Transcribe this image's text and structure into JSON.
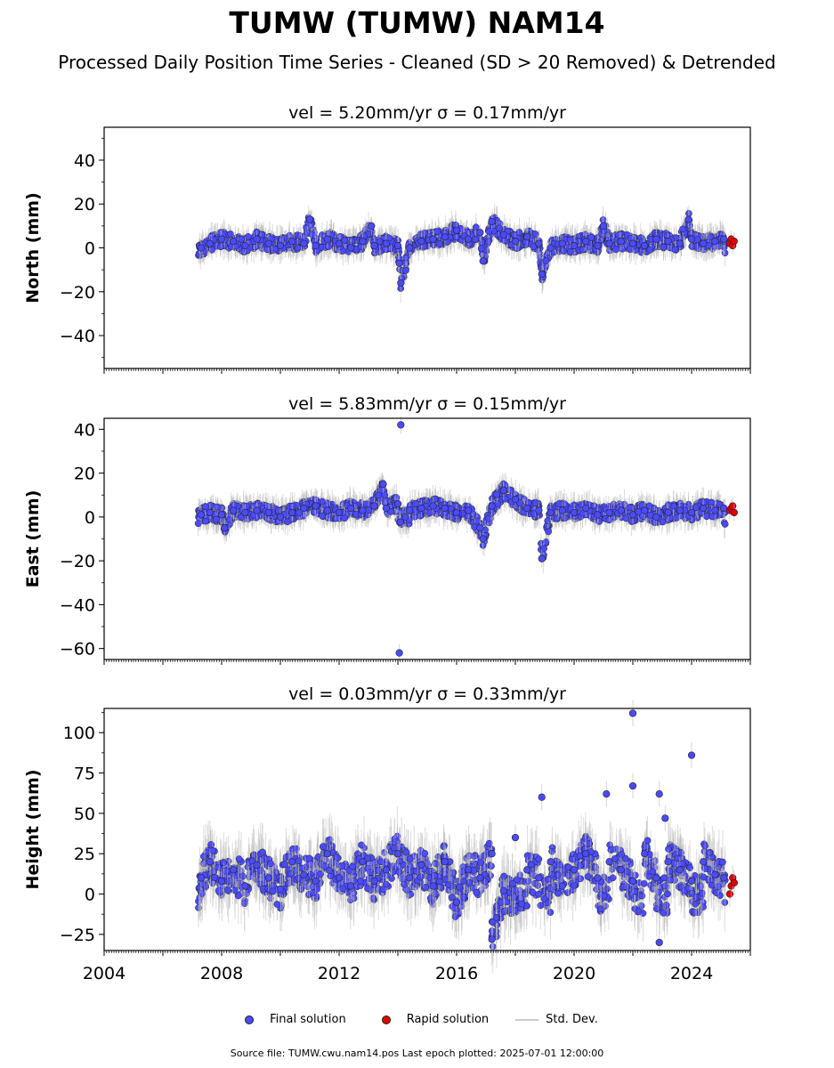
{
  "title": "TUMW (TUMW) NAM14",
  "subtitle": "Processed Daily Position Time Series - Cleaned (SD > 20 Removed) & Detrended",
  "source_note": "Source file: TUMW.cwu.nam14.pos  Last epoch plotted: 2025-07-01 12:00:00",
  "legend": {
    "final": "Final solution",
    "rapid": "Rapid solution",
    "std": "Std. Dev."
  },
  "colors": {
    "final": "#4a4aff",
    "rapid": "#e00000",
    "std": "#bbbbbb",
    "edge": "#222222"
  },
  "chart_data": [
    {
      "type": "scatter",
      "panel": "north",
      "title": "vel = 5.20mm/yr   σ = 0.17mm/yr",
      "ylabel": "North (mm)",
      "xlabel": "",
      "xlim": [
        2004,
        2026
      ],
      "ylim": [
        -55,
        55
      ],
      "yticks": [
        "40",
        "20",
        "0",
        "−20",
        "−40"
      ],
      "yticks_values": [
        40,
        20,
        0,
        -20,
        -40
      ],
      "show_xticklabels": false,
      "series": [
        {
          "name": "Final solution",
          "x": [
            2007.3,
            2007.6,
            2008.0,
            2008.4,
            2008.8,
            2009.2,
            2009.6,
            2010.0,
            2010.4,
            2010.8,
            2011.2,
            2011.6,
            2012.0,
            2012.4,
            2012.8,
            2013.2,
            2013.6,
            2014.0,
            2014.4,
            2014.8,
            2015.2,
            2015.6,
            2016.0,
            2016.4,
            2016.8,
            2017.2,
            2017.6,
            2018.0,
            2018.4,
            2018.8,
            2019.2,
            2019.6,
            2020.0,
            2020.4,
            2020.8,
            2021.2,
            2021.6,
            2022.0,
            2022.4,
            2022.8,
            2023.2,
            2023.6,
            2024.0,
            2024.4,
            2024.8,
            2025.1,
            2011.0,
            2014.1,
            2014.05,
            2018.9,
            2016.9,
            2021.0,
            2023.9,
            2013.1
          ],
          "y": [
            0,
            2,
            4,
            3,
            1,
            4,
            2,
            1,
            3,
            2,
            1,
            4,
            2,
            0,
            3,
            1,
            2,
            1,
            0,
            3,
            4,
            5,
            8,
            4,
            7,
            12,
            6,
            3,
            5,
            2,
            0,
            2,
            1,
            3,
            1,
            2,
            3,
            2,
            1,
            4,
            3,
            2,
            4,
            2,
            3,
            4,
            13,
            -16,
            -7,
            -12,
            -6,
            10,
            13,
            10
          ]
        },
        {
          "name": "Rapid solution",
          "x": [
            2025.3,
            2025.35,
            2025.4,
            2025.45
          ],
          "y": [
            2,
            4,
            1,
            3
          ]
        }
      ]
    },
    {
      "type": "scatter",
      "panel": "east",
      "title": "vel = 5.83mm/yr   σ = 0.15mm/yr",
      "ylabel": "East (mm)",
      "xlabel": "",
      "xlim": [
        2004,
        2026
      ],
      "ylim": [
        -65,
        45
      ],
      "yticks": [
        "40",
        "20",
        "0",
        "−20",
        "−40",
        "−60"
      ],
      "yticks_values": [
        40,
        20,
        0,
        -20,
        -40,
        -60
      ],
      "show_xticklabels": false,
      "series": [
        {
          "name": "Final solution",
          "x": [
            2007.3,
            2007.6,
            2008.0,
            2008.4,
            2008.8,
            2009.2,
            2009.6,
            2010.0,
            2010.4,
            2010.8,
            2011.2,
            2011.6,
            2012.0,
            2012.4,
            2012.8,
            2013.2,
            2013.6,
            2014.0,
            2014.4,
            2014.8,
            2015.2,
            2015.6,
            2016.0,
            2016.4,
            2016.8,
            2017.2,
            2017.6,
            2018.0,
            2018.4,
            2018.8,
            2019.2,
            2019.6,
            2020.0,
            2020.4,
            2020.8,
            2021.2,
            2021.6,
            2022.0,
            2022.4,
            2022.8,
            2023.2,
            2023.6,
            2024.0,
            2024.4,
            2024.8,
            2025.1,
            2014.1,
            2014.05,
            2018.9,
            2013.5,
            2008.1,
            2016.9
          ],
          "y": [
            1,
            2,
            1,
            3,
            2,
            3,
            2,
            0,
            2,
            4,
            5,
            3,
            2,
            4,
            3,
            5,
            4,
            6,
            3,
            4,
            5,
            4,
            2,
            3,
            -5,
            5,
            12,
            8,
            4,
            3,
            2,
            3,
            2,
            4,
            1,
            2,
            3,
            1,
            3,
            0,
            2,
            3,
            2,
            4,
            3,
            4,
            42,
            -62,
            -19,
            15,
            -5,
            -10
          ]
        },
        {
          "name": "Rapid solution",
          "x": [
            2025.3,
            2025.35,
            2025.4,
            2025.45
          ],
          "y": [
            3,
            4,
            5,
            2
          ]
        }
      ]
    },
    {
      "type": "scatter",
      "panel": "height",
      "title": "vel = 0.03mm/yr   σ = 0.33mm/yr",
      "ylabel": "Height (mm)",
      "xlabel": "",
      "xlim": [
        2004,
        2026
      ],
      "ylim": [
        -35,
        115
      ],
      "yticks": [
        "100",
        "75",
        "50",
        "25",
        "0",
        "−25"
      ],
      "yticks_values": [
        100,
        75,
        50,
        25,
        0,
        -25
      ],
      "xticks": [
        "2004",
        "2008",
        "2012",
        "2016",
        "2020",
        "2024"
      ],
      "xticks_values": [
        2004,
        2008,
        2012,
        2016,
        2020,
        2024
      ],
      "show_xticklabels": true,
      "series": [
        {
          "name": "Final solution",
          "x": [
            2007.3,
            2007.6,
            2008.0,
            2008.4,
            2008.8,
            2009.2,
            2009.6,
            2010.0,
            2010.4,
            2010.8,
            2011.2,
            2011.6,
            2012.0,
            2012.4,
            2012.8,
            2013.2,
            2013.6,
            2014.0,
            2014.4,
            2014.8,
            2015.2,
            2015.6,
            2016.0,
            2016.4,
            2016.8,
            2017.2,
            2017.6,
            2018.0,
            2018.4,
            2018.8,
            2019.2,
            2019.6,
            2020.0,
            2020.4,
            2020.8,
            2021.2,
            2021.6,
            2022.0,
            2022.4,
            2022.8,
            2023.2,
            2023.6,
            2024.0,
            2024.4,
            2024.8,
            2025.1,
            2022.0,
            2024.0,
            2021.1,
            2022.9,
            2018.9,
            2022.0,
            2023.1,
            2022.9,
            2017.2
          ],
          "y": [
            10,
            20,
            8,
            15,
            5,
            18,
            10,
            3,
            20,
            12,
            8,
            25,
            10,
            5,
            20,
            8,
            15,
            25,
            10,
            18,
            5,
            20,
            -5,
            15,
            10,
            25,
            2,
            35,
            15,
            10,
            20,
            5,
            15,
            25,
            10,
            20,
            15,
            8,
            25,
            10,
            20,
            15,
            8,
            20,
            12,
            10,
            112,
            86,
            62,
            62,
            60,
            67,
            47,
            -30,
            -28
          ]
        },
        {
          "name": "Rapid solution",
          "x": [
            2025.3,
            2025.35,
            2025.4,
            2025.45
          ],
          "y": [
            0,
            5,
            10,
            7
          ]
        }
      ]
    }
  ]
}
